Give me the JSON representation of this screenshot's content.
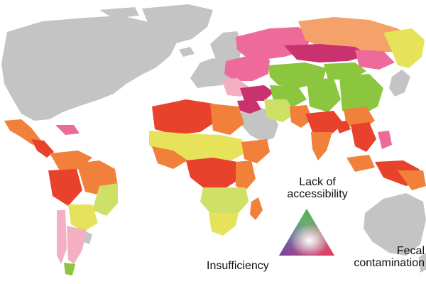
{
  "legend": {
    "top_label_line1": "Lack of",
    "top_label_line2": "accessibility",
    "left_label": "Insufficiency",
    "right_label_line1": "Fecal",
    "right_label_line2": "contamination",
    "corner_colors": {
      "top": "#4caf50",
      "left": "#3f3fbf",
      "right": "#e8345a",
      "center": "#ffffff"
    }
  },
  "map": {
    "land_no_data_color": "#c4c4c4",
    "ocean_color": "#ffffff",
    "palette": {
      "red": "#e8412c",
      "orange": "#f0803a",
      "light_orange": "#f4a26a",
      "yellow": "#e6e35a",
      "yellow_green": "#cfe066",
      "green": "#8cc63f",
      "pink": "#ee6a9a",
      "magenta": "#c8336f",
      "light_pink": "#f3b0c3"
    }
  }
}
